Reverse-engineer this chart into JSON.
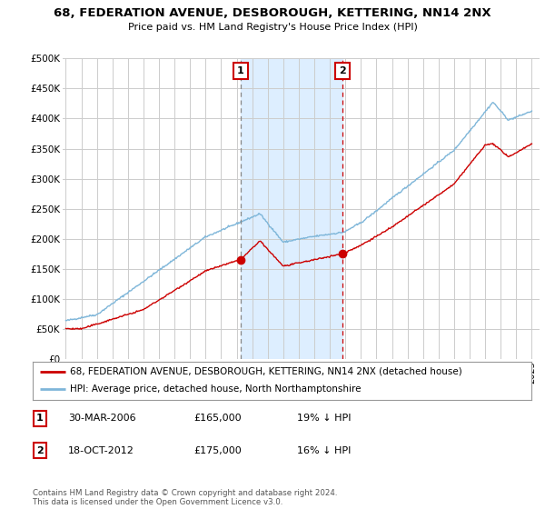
{
  "title": "68, FEDERATION AVENUE, DESBOROUGH, KETTERING, NN14 2NX",
  "subtitle": "Price paid vs. HM Land Registry's House Price Index (HPI)",
  "ylabel_ticks": [
    "£0",
    "£50K",
    "£100K",
    "£150K",
    "£200K",
    "£250K",
    "£300K",
    "£350K",
    "£400K",
    "£450K",
    "£500K"
  ],
  "ytick_values": [
    0,
    50000,
    100000,
    150000,
    200000,
    250000,
    300000,
    350000,
    400000,
    450000,
    500000
  ],
  "xlim": [
    1994.8,
    2025.5
  ],
  "ylim": [
    0,
    500000
  ],
  "marker1_x": 2006.25,
  "marker1_y": 165000,
  "marker1_label": "1",
  "marker1_date": "30-MAR-2006",
  "marker1_price": "£165,000",
  "marker1_pct": "19% ↓ HPI",
  "marker2_x": 2012.8,
  "marker2_y": 175000,
  "marker2_label": "2",
  "marker2_date": "18-OCT-2012",
  "marker2_price": "£175,000",
  "marker2_pct": "16% ↓ HPI",
  "shade_x_start": 2006.25,
  "shade_x_end": 2012.8,
  "legend_line1": "68, FEDERATION AVENUE, DESBOROUGH, KETTERING, NN14 2NX (detached house)",
  "legend_line2": "HPI: Average price, detached house, North Northamptonshire",
  "footer": "Contains HM Land Registry data © Crown copyright and database right 2024.\nThis data is licensed under the Open Government Licence v3.0.",
  "red_color": "#cc0000",
  "blue_color": "#7eb6d9",
  "shade_color": "#ddeeff",
  "grid_color": "#cccccc",
  "background_color": "#ffffff",
  "marker1_vline_color": "#888888",
  "marker2_vline_color": "#cc0000"
}
